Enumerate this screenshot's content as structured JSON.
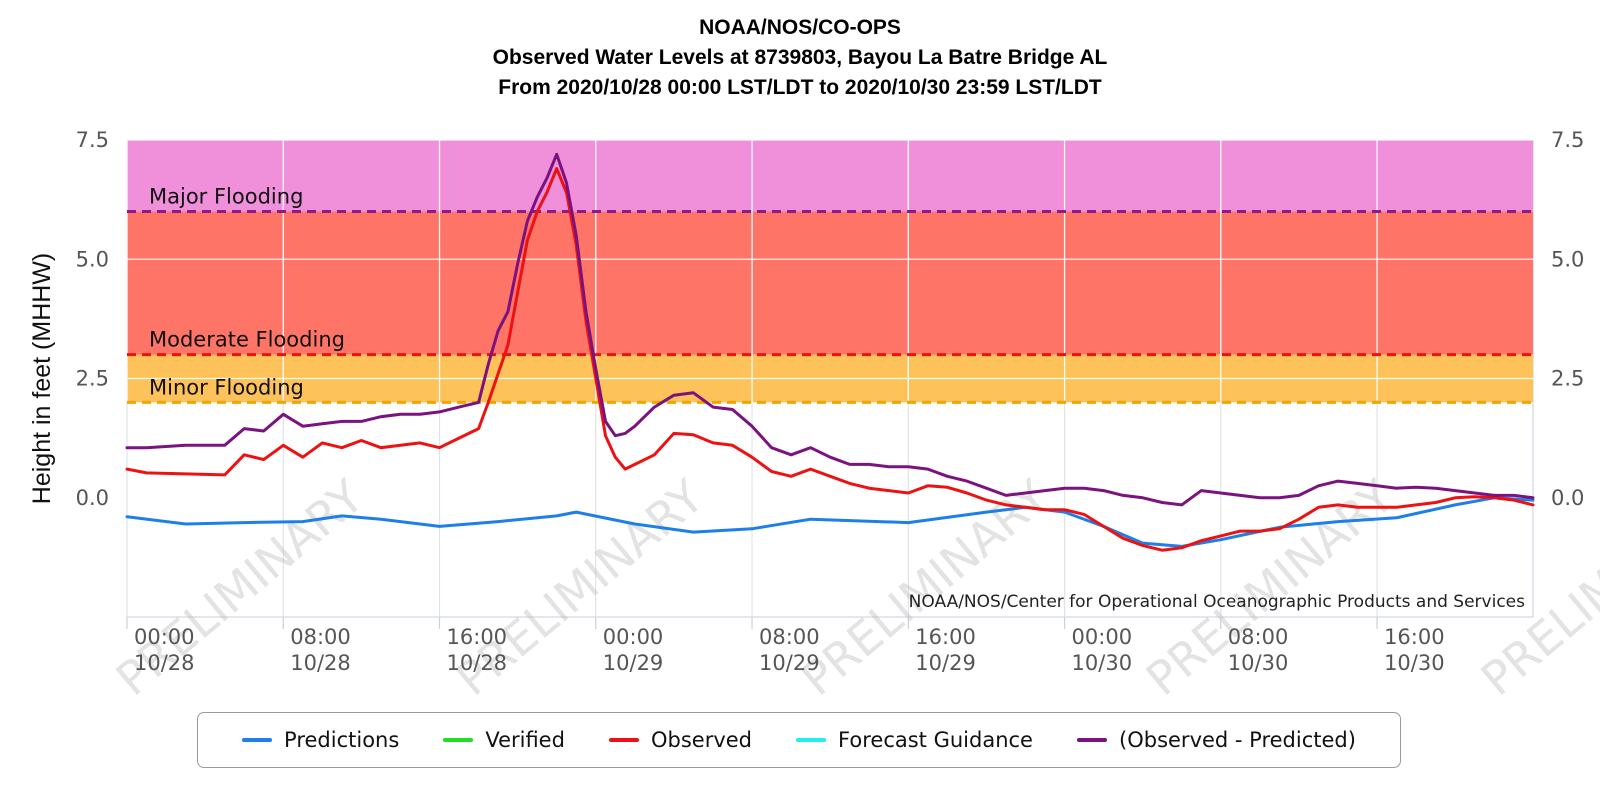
{
  "titles": [
    "NOAA/NOS/CO-OPS",
    "Observed Water Levels at 8739803, Bayou La Batre Bridge AL",
    "From 2020/10/28 00:00 LST/LDT to 2020/10/30 23:59 LST/LDT"
  ],
  "credit": "NOAA/NOS/Center for Operational Oceanographic Products and Services",
  "watermark": "PRELIMINARY",
  "colors": {
    "major_band": "#f08fda",
    "moderate_band": "#fe7466",
    "minor_band": "#fec25b",
    "major_line": "#8b1a8c",
    "moderate_line": "#ee1111",
    "minor_line": "#f5a300",
    "predictions": "#1e7fe8",
    "verified": "#22dd22",
    "observed": "#ee1111",
    "forecast": "#22eeee",
    "residual": "#7b1280"
  },
  "chart_data": {
    "type": "line",
    "ylabel": "Height in feet (MHHW)",
    "ylim": [
      -2.5,
      7.5
    ],
    "y_ticks": [
      {
        "value": 7.5,
        "label": "7.5"
      },
      {
        "value": 5.0,
        "label": "5.0"
      },
      {
        "value": 2.5,
        "label": "2.5"
      },
      {
        "value": 0.0,
        "label": "0.0"
      }
    ],
    "xlim": [
      "2020-10-28 00:00",
      "2020-10-30 23:59"
    ],
    "x_ticks": [
      {
        "time": "2020-10-28 00:00",
        "label1": "00:00",
        "label2": "10/28"
      },
      {
        "time": "2020-10-28 08:00",
        "label1": "08:00",
        "label2": "10/28"
      },
      {
        "time": "2020-10-28 16:00",
        "label1": "16:00",
        "label2": "10/28"
      },
      {
        "time": "2020-10-29 00:00",
        "label1": "00:00",
        "label2": "10/29"
      },
      {
        "time": "2020-10-29 08:00",
        "label1": "08:00",
        "label2": "10/29"
      },
      {
        "time": "2020-10-29 16:00",
        "label1": "16:00",
        "label2": "10/29"
      },
      {
        "time": "2020-10-30 00:00",
        "label1": "00:00",
        "label2": "10/30"
      },
      {
        "time": "2020-10-30 08:00",
        "label1": "08:00",
        "label2": "10/30"
      },
      {
        "time": "2020-10-30 16:00",
        "label1": "16:00",
        "label2": "10/30"
      }
    ],
    "grid": true,
    "legend_position": "bottom",
    "thresholds": [
      {
        "name": "Major Flooding",
        "value": 6.0
      },
      {
        "name": "Moderate Flooding",
        "value": 3.0
      },
      {
        "name": "Minor Flooding",
        "value": 2.0
      }
    ],
    "series": [
      {
        "name": "Predictions",
        "x": [
          "2020-10-28 00:00",
          "2020-10-28 03:00",
          "2020-10-28 06:00",
          "2020-10-28 09:00",
          "2020-10-28 11:00",
          "2020-10-28 13:00",
          "2020-10-28 16:00",
          "2020-10-28 19:00",
          "2020-10-28 22:00",
          "2020-10-28 23:00",
          "2020-10-29 02:00",
          "2020-10-29 05:00",
          "2020-10-29 08:00",
          "2020-10-29 11:00",
          "2020-10-29 16:00",
          "2020-10-29 20:00",
          "2020-10-29 22:00",
          "2020-10-30 00:00",
          "2020-10-30 02:00",
          "2020-10-30 04:00",
          "2020-10-30 06:00",
          "2020-10-30 08:00",
          "2020-10-30 11:00",
          "2020-10-30 14:00",
          "2020-10-30 17:00",
          "2020-10-30 20:00",
          "2020-10-30 22:00",
          "2020-10-30 23:59"
        ],
        "y": [
          -0.4,
          -0.55,
          -0.52,
          -0.5,
          -0.38,
          -0.45,
          -0.6,
          -0.5,
          -0.38,
          -0.3,
          -0.55,
          -0.72,
          -0.65,
          -0.45,
          -0.52,
          -0.3,
          -0.2,
          -0.3,
          -0.6,
          -0.95,
          -1.02,
          -0.88,
          -0.62,
          -0.5,
          -0.42,
          -0.15,
          0.0,
          -0.05
        ]
      },
      {
        "name": "Verified",
        "x": [],
        "y": []
      },
      {
        "name": "Observed",
        "x": [
          "2020-10-28 00:00",
          "2020-10-28 01:00",
          "2020-10-28 03:00",
          "2020-10-28 05:00",
          "2020-10-28 06:00",
          "2020-10-28 07:00",
          "2020-10-28 08:00",
          "2020-10-28 09:00",
          "2020-10-28 10:00",
          "2020-10-28 11:00",
          "2020-10-28 12:00",
          "2020-10-28 13:00",
          "2020-10-28 14:00",
          "2020-10-28 15:00",
          "2020-10-28 16:00",
          "2020-10-28 17:00",
          "2020-10-28 18:00",
          "2020-10-28 18:30",
          "2020-10-28 19:00",
          "2020-10-28 19:30",
          "2020-10-28 20:00",
          "2020-10-28 20:30",
          "2020-10-28 21:00",
          "2020-10-28 21:30",
          "2020-10-28 22:00",
          "2020-10-28 22:30",
          "2020-10-28 23:00",
          "2020-10-28 23:30",
          "2020-10-29 00:00",
          "2020-10-29 00:30",
          "2020-10-29 01:00",
          "2020-10-29 01:30",
          "2020-10-29 02:00",
          "2020-10-29 03:00",
          "2020-10-29 04:00",
          "2020-10-29 05:00",
          "2020-10-29 06:00",
          "2020-10-29 07:00",
          "2020-10-29 08:00",
          "2020-10-29 09:00",
          "2020-10-29 10:00",
          "2020-10-29 11:00",
          "2020-10-29 12:00",
          "2020-10-29 13:00",
          "2020-10-29 14:00",
          "2020-10-29 15:00",
          "2020-10-29 16:00",
          "2020-10-29 17:00",
          "2020-10-29 18:00",
          "2020-10-29 19:00",
          "2020-10-29 20:00",
          "2020-10-29 21:00",
          "2020-10-29 22:00",
          "2020-10-29 23:00",
          "2020-10-30 00:00",
          "2020-10-30 01:00",
          "2020-10-30 02:00",
          "2020-10-30 03:00",
          "2020-10-30 04:00",
          "2020-10-30 05:00",
          "2020-10-30 06:00",
          "2020-10-30 07:00",
          "2020-10-30 08:00",
          "2020-10-30 09:00",
          "2020-10-30 10:00",
          "2020-10-30 11:00",
          "2020-10-30 12:00",
          "2020-10-30 13:00",
          "2020-10-30 14:00",
          "2020-10-30 15:00",
          "2020-10-30 16:00",
          "2020-10-30 17:00",
          "2020-10-30 18:00",
          "2020-10-30 19:00",
          "2020-10-30 20:00",
          "2020-10-30 21:00",
          "2020-10-30 22:00",
          "2020-10-30 23:00",
          "2020-10-30 23:59"
        ],
        "y": [
          0.6,
          0.52,
          0.5,
          0.48,
          0.9,
          0.8,
          1.1,
          0.85,
          1.15,
          1.05,
          1.2,
          1.05,
          1.1,
          1.15,
          1.05,
          1.25,
          1.45,
          2.0,
          2.6,
          3.2,
          4.3,
          5.4,
          6.0,
          6.4,
          6.9,
          6.4,
          5.3,
          3.7,
          2.5,
          1.3,
          0.85,
          0.6,
          0.7,
          0.9,
          1.35,
          1.32,
          1.15,
          1.1,
          0.85,
          0.55,
          0.45,
          0.6,
          0.45,
          0.3,
          0.2,
          0.15,
          0.1,
          0.25,
          0.22,
          0.1,
          -0.05,
          -0.15,
          -0.2,
          -0.25,
          -0.25,
          -0.35,
          -0.6,
          -0.85,
          -1.0,
          -1.1,
          -1.05,
          -0.9,
          -0.8,
          -0.7,
          -0.7,
          -0.65,
          -0.45,
          -0.2,
          -0.15,
          -0.2,
          -0.2,
          -0.2,
          -0.15,
          -0.1,
          0.0,
          0.02,
          0.0,
          -0.05,
          -0.15
        ]
      },
      {
        "name": "Forecast Guidance",
        "x": [],
        "y": []
      },
      {
        "name": "(Observed - Predicted)",
        "x": [
          "2020-10-28 00:00",
          "2020-10-28 01:00",
          "2020-10-28 03:00",
          "2020-10-28 05:00",
          "2020-10-28 06:00",
          "2020-10-28 07:00",
          "2020-10-28 08:00",
          "2020-10-28 09:00",
          "2020-10-28 10:00",
          "2020-10-28 11:00",
          "2020-10-28 12:00",
          "2020-10-28 13:00",
          "2020-10-28 14:00",
          "2020-10-28 15:00",
          "2020-10-28 16:00",
          "2020-10-28 17:00",
          "2020-10-28 18:00",
          "2020-10-28 18:30",
          "2020-10-28 19:00",
          "2020-10-28 19:30",
          "2020-10-28 20:00",
          "2020-10-28 20:30",
          "2020-10-28 21:00",
          "2020-10-28 21:30",
          "2020-10-28 22:00",
          "2020-10-28 22:30",
          "2020-10-28 23:00",
          "2020-10-28 23:30",
          "2020-10-29 00:00",
          "2020-10-29 00:30",
          "2020-10-29 01:00",
          "2020-10-29 01:30",
          "2020-10-29 02:00",
          "2020-10-29 03:00",
          "2020-10-29 04:00",
          "2020-10-29 05:00",
          "2020-10-29 06:00",
          "2020-10-29 07:00",
          "2020-10-29 08:00",
          "2020-10-29 09:00",
          "2020-10-29 10:00",
          "2020-10-29 11:00",
          "2020-10-29 12:00",
          "2020-10-29 13:00",
          "2020-10-29 14:00",
          "2020-10-29 15:00",
          "2020-10-29 16:00",
          "2020-10-29 17:00",
          "2020-10-29 18:00",
          "2020-10-29 19:00",
          "2020-10-29 20:00",
          "2020-10-29 21:00",
          "2020-10-29 22:00",
          "2020-10-29 23:00",
          "2020-10-30 00:00",
          "2020-10-30 01:00",
          "2020-10-30 02:00",
          "2020-10-30 03:00",
          "2020-10-30 04:00",
          "2020-10-30 05:00",
          "2020-10-30 06:00",
          "2020-10-30 07:00",
          "2020-10-30 08:00",
          "2020-10-30 09:00",
          "2020-10-30 10:00",
          "2020-10-30 11:00",
          "2020-10-30 12:00",
          "2020-10-30 13:00",
          "2020-10-30 14:00",
          "2020-10-30 15:00",
          "2020-10-30 16:00",
          "2020-10-30 17:00",
          "2020-10-30 18:00",
          "2020-10-30 19:00",
          "2020-10-30 20:00",
          "2020-10-30 21:00",
          "2020-10-30 22:00",
          "2020-10-30 23:00",
          "2020-10-30 23:59"
        ],
        "y": [
          1.05,
          1.05,
          1.1,
          1.1,
          1.45,
          1.4,
          1.75,
          1.5,
          1.55,
          1.6,
          1.6,
          1.7,
          1.75,
          1.75,
          1.8,
          1.9,
          2.0,
          2.8,
          3.5,
          3.9,
          4.9,
          5.8,
          6.3,
          6.7,
          7.2,
          6.6,
          5.5,
          3.9,
          2.7,
          1.6,
          1.3,
          1.35,
          1.5,
          1.9,
          2.15,
          2.2,
          1.9,
          1.85,
          1.5,
          1.05,
          0.9,
          1.05,
          0.85,
          0.7,
          0.7,
          0.65,
          0.65,
          0.6,
          0.45,
          0.35,
          0.2,
          0.05,
          0.1,
          0.15,
          0.2,
          0.2,
          0.15,
          0.05,
          0.0,
          -0.1,
          -0.15,
          0.15,
          0.1,
          0.05,
          0.0,
          0.0,
          0.05,
          0.25,
          0.35,
          0.3,
          0.25,
          0.2,
          0.22,
          0.2,
          0.15,
          0.1,
          0.05,
          0.05,
          0.0
        ]
      }
    ]
  }
}
